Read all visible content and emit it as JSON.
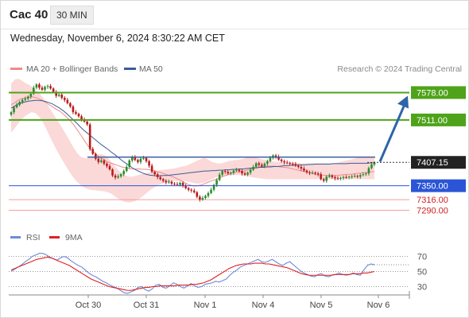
{
  "header": {
    "symbol": "Cac 40",
    "timeframe": "30 MIN",
    "datetime": "Wednesday, November 6, 2024 8:30:22 AM CET"
  },
  "legend": {
    "ma20": {
      "label": "MA 20 + Bollinger Bands",
      "color": "#f08a8a"
    },
    "ma50": {
      "label": "MA 50",
      "color": "#3b5c9a"
    },
    "credit": "Research © 2024 Trading Central"
  },
  "colors": {
    "bull": "#2e8b2e",
    "bear": "#b81c1c",
    "band": "#fbd9d9",
    "resistance": "#4ea31a",
    "support": "#2b55d6",
    "pivot": "#3b5c9a",
    "minor": "#f2a0a0",
    "arrow": "#2f64a8",
    "rsi": "#6f8ad8",
    "rsima": "#e02020"
  },
  "chart_data": [
    {
      "type": "candlestick",
      "title": "Cac 40",
      "x_ticks": [
        "Oct 30",
        "Oct 31",
        "Nov 1",
        "Nov 4",
        "Nov 5",
        "Nov 6"
      ],
      "ylim": [
        7250,
        7610
      ],
      "current_price": 7407.15,
      "levels": [
        {
          "value": 7578.0,
          "label": "7578.00",
          "kind": "resistance"
        },
        {
          "value": 7511.0,
          "label": "7511.00",
          "kind": "resistance"
        },
        {
          "value": 7420.0,
          "label": "",
          "kind": "pivot"
        },
        {
          "value": 7350.0,
          "label": "7350.00",
          "kind": "support"
        },
        {
          "value": 7316.0,
          "label": "7316.00",
          "kind": "minor"
        },
        {
          "value": 7290.0,
          "label": "7290.00",
          "kind": "minor"
        }
      ],
      "forecast_target": 7578.0,
      "closes": [
        7530,
        7542,
        7548,
        7555,
        7560,
        7563,
        7568,
        7575,
        7590,
        7598,
        7590,
        7585,
        7592,
        7594,
        7588,
        7580,
        7570,
        7573,
        7565,
        7560,
        7552,
        7544,
        7530,
        7526,
        7520,
        7512,
        7507,
        7500,
        7440,
        7428,
        7416,
        7408,
        7412,
        7404,
        7398,
        7390,
        7375,
        7370,
        7373,
        7378,
        7386,
        7396,
        7412,
        7420,
        7413,
        7408,
        7416,
        7418,
        7410,
        7399,
        7384,
        7378,
        7371,
        7366,
        7362,
        7358,
        7360,
        7355,
        7354,
        7352,
        7357,
        7350,
        7344,
        7340,
        7338,
        7334,
        7323,
        7316,
        7320,
        7325,
        7332,
        7340,
        7352,
        7364,
        7377,
        7386,
        7384,
        7380,
        7382,
        7387,
        7389,
        7386,
        7380,
        7377,
        7382,
        7389,
        7396,
        7405,
        7401,
        7397,
        7404,
        7410,
        7418,
        7424,
        7421,
        7414,
        7410,
        7407,
        7406,
        7404,
        7403,
        7399,
        7396,
        7392,
        7387,
        7383,
        7381,
        7382,
        7380,
        7378,
        7366,
        7362,
        7372,
        7375,
        7371,
        7368,
        7367,
        7369,
        7371,
        7370,
        7372,
        7373,
        7374,
        7372,
        7376,
        7378,
        7380,
        7393,
        7402,
        7407
      ],
      "ma20": [
        7548,
        7553,
        7559,
        7563,
        7565,
        7566,
        7568,
        7566,
        7563,
        7559,
        7554,
        7548,
        7543,
        7537,
        7533,
        7526,
        7518,
        7510,
        7500,
        7488,
        7476,
        7463,
        7450,
        7440,
        7432,
        7424,
        7418,
        7413,
        7408,
        7405,
        7402,
        7399,
        7396,
        7394,
        7392,
        7391,
        7391,
        7391,
        7390,
        7390,
        7389,
        7388,
        7385,
        7383,
        7380,
        7377,
        7374,
        7371,
        7367,
        7363,
        7358,
        7354,
        7351,
        7349,
        7350,
        7352,
        7355,
        7359,
        7362,
        7365,
        7368,
        7372,
        7375,
        7378,
        7381,
        7383,
        7385,
        7386,
        7388,
        7390,
        7392,
        7394,
        7396,
        7397,
        7398,
        7398,
        7398,
        7397,
        7396,
        7395,
        7394,
        7392,
        7390,
        7388,
        7386,
        7384,
        7382,
        7380,
        7378,
        7377,
        7376,
        7375,
        7375,
        7375,
        7375,
        7376,
        7377,
        7378,
        7378,
        7379,
        7380,
        7381,
        7382,
        7383,
        7384,
        7385
      ],
      "ma50": [
        7540,
        7545,
        7550,
        7553,
        7555,
        7557,
        7558,
        7559,
        7559,
        7558,
        7556,
        7553,
        7550,
        7545,
        7540,
        7534,
        7527,
        7519,
        7511,
        7503,
        7494,
        7486,
        7479,
        7472,
        7465,
        7458,
        7451,
        7445,
        7439,
        7432,
        7426,
        7419,
        7412,
        7406,
        7400,
        7394,
        7389,
        7385,
        7381,
        7378,
        7376,
        7375,
        7374,
        7374,
        7375,
        7375,
        7376,
        7377,
        7378,
        7379,
        7380,
        7381,
        7382,
        7383,
        7384,
        7385,
        7386,
        7386,
        7387,
        7387,
        7388,
        7388,
        7389,
        7389,
        7390,
        7390,
        7391,
        7391,
        7392,
        7393,
        7394,
        7394,
        7395,
        7395,
        7396,
        7396,
        7397,
        7397,
        7398,
        7399,
        7399,
        7400,
        7400,
        7401,
        7401,
        7401,
        7402,
        7402,
        7403,
        7403,
        7403,
        7403,
        7403,
        7404,
        7404,
        7404,
        7404,
        7404,
        7405,
        7405,
        7405,
        7405,
        7405,
        7405,
        7406,
        7406
      ],
      "band_upper": [
        7600,
        7610,
        7612,
        7608,
        7602,
        7598,
        7592,
        7585,
        7578,
        7568,
        7556,
        7542,
        7528,
        7515,
        7502,
        7488,
        7474,
        7459,
        7444,
        7431,
        7422,
        7418,
        7417,
        7419,
        7422,
        7426,
        7428,
        7425,
        7418,
        7408,
        7398,
        7388,
        7380,
        7375,
        7372,
        7372,
        7374,
        7377,
        7379,
        7381,
        7383,
        7385,
        7387,
        7388,
        7389,
        7390,
        7391,
        7392,
        7394,
        7396,
        7398,
        7400,
        7404,
        7408,
        7412,
        7416,
        7418,
        7414,
        7408,
        7406,
        7404,
        7405,
        7408,
        7410,
        7412,
        7413,
        7414,
        7416,
        7418,
        7420,
        7420,
        7418,
        7416,
        7414,
        7412,
        7410,
        7409,
        7408,
        7407,
        7406,
        7406,
        7406,
        7406,
        7406,
        7405,
        7405,
        7405,
        7405,
        7405,
        7405,
        7405,
        7405,
        7405,
        7405,
        7406,
        7408,
        7410,
        7412,
        7414,
        7416,
        7418,
        7420,
        7420,
        7420,
        7420,
        7420
      ],
      "band_lower": [
        7480,
        7490,
        7502,
        7512,
        7520,
        7526,
        7530,
        7528,
        7520,
        7508,
        7492,
        7474,
        7456,
        7440,
        7424,
        7410,
        7396,
        7382,
        7370,
        7360,
        7352,
        7346,
        7342,
        7340,
        7339,
        7338,
        7337,
        7336,
        7334,
        7330,
        7324,
        7318,
        7313,
        7310,
        7309,
        7310,
        7313,
        7318,
        7324,
        7331,
        7338,
        7344,
        7349,
        7353,
        7356,
        7359,
        7361,
        7362,
        7362,
        7362,
        7361,
        7360,
        7358,
        7356,
        7355,
        7356,
        7358,
        7362,
        7366,
        7370,
        7372,
        7373,
        7374,
        7375,
        7376,
        7376,
        7376,
        7375,
        7374,
        7372,
        7370,
        7369,
        7368,
        7367,
        7366,
        7366,
        7366,
        7366,
        7366,
        7366,
        7366,
        7366,
        7366,
        7366,
        7366,
        7366,
        7366,
        7366,
        7366,
        7366,
        7366,
        7366,
        7366,
        7366,
        7366,
        7366,
        7366,
        7366,
        7366,
        7366,
        7366,
        7366,
        7366,
        7366,
        7366,
        7366
      ]
    },
    {
      "type": "line",
      "title": "RSI",
      "series": [
        {
          "name": "RSI"
        },
        {
          "name": "9MA"
        }
      ],
      "ylim": [
        20,
        80
      ],
      "y_ticks": [
        70,
        50,
        30
      ],
      "rsi": [
        50,
        53,
        56,
        59,
        63,
        66,
        70,
        72,
        74,
        74,
        72,
        69,
        67,
        65,
        68,
        70,
        68,
        64,
        61,
        58,
        56,
        52,
        48,
        45,
        43,
        40,
        37,
        35,
        32,
        30,
        28,
        25,
        22,
        21,
        23,
        25,
        29,
        30,
        26,
        24,
        27,
        32,
        33,
        29,
        28,
        31,
        35,
        33,
        30,
        28,
        31,
        34,
        31,
        29,
        30,
        33,
        34,
        35,
        37,
        36,
        38,
        40,
        45,
        49,
        52,
        56,
        58,
        60,
        62,
        64,
        66,
        63,
        62,
        64,
        66,
        63,
        60,
        58,
        61,
        63,
        59,
        55,
        51,
        48,
        46,
        44,
        43,
        46,
        47,
        44,
        43,
        45,
        46,
        48,
        46,
        45,
        46,
        48,
        46,
        45,
        52,
        58,
        60,
        59
      ],
      "rsi_ma": [
        52,
        54,
        56,
        58,
        60,
        62,
        64,
        66,
        67,
        68,
        69,
        68,
        66,
        64,
        62,
        60,
        58,
        55,
        52,
        49,
        46,
        43,
        40,
        38,
        36,
        34,
        32,
        30,
        29,
        28,
        27,
        26,
        25,
        25,
        26,
        27,
        28,
        29,
        29,
        30,
        30,
        31,
        31,
        31,
        31,
        31,
        32,
        32,
        32,
        32,
        33,
        33,
        34,
        35,
        37,
        39,
        42,
        45,
        48,
        51,
        54,
        56,
        58,
        59,
        60,
        60,
        60,
        61,
        61,
        61,
        60,
        60,
        59,
        58,
        57,
        56,
        55,
        53,
        51,
        49,
        47,
        46,
        45,
        45,
        45,
        45,
        45,
        45,
        45,
        46,
        46,
        46,
        46,
        46,
        47,
        47,
        47,
        48,
        48,
        49,
        50
      ]
    }
  ],
  "rsi_legend": {
    "rsi": "RSI",
    "ma": "9MA",
    "ticks": [
      "70",
      "50",
      "30"
    ]
  }
}
